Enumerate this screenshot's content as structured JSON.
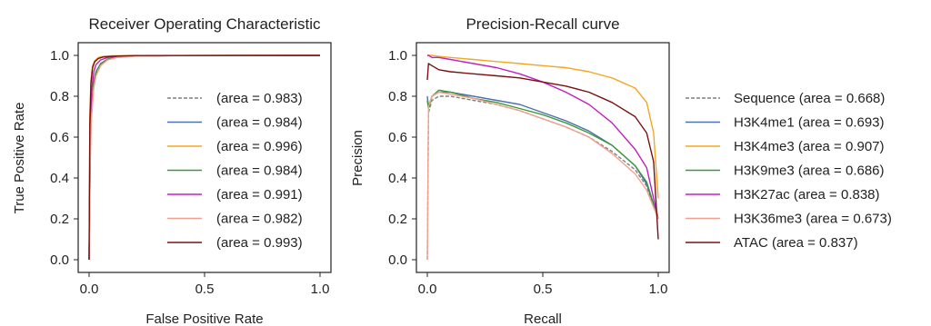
{
  "chart_data": [
    {
      "type": "line",
      "title": "Receiver Operating Characteristic",
      "xlabel": "False Positive Rate",
      "ylabel": "True Positive Rate",
      "xlim": [
        0,
        1
      ],
      "ylim": [
        0,
        1
      ],
      "xticks": [
        "0.0",
        "0.5",
        "1.0"
      ],
      "yticks": [
        "0.0",
        "0.2",
        "0.4",
        "0.6",
        "0.8",
        "1.0"
      ],
      "legend_position": "center-right",
      "series": [
        {
          "legend": "(area = 0.983)",
          "color": "#808080",
          "dashed": true,
          "x": [
            0,
            0.005,
            0.01,
            0.02,
            0.03,
            0.05,
            0.08,
            0.12,
            0.2,
            0.4,
            1.0
          ],
          "y": [
            0,
            0.5,
            0.7,
            0.85,
            0.91,
            0.955,
            0.98,
            0.99,
            0.997,
            0.999,
            1.0
          ]
        },
        {
          "legend": "(area = 0.984)",
          "color": "#4c72b0",
          "dashed": false,
          "x": [
            0,
            0.005,
            0.01,
            0.02,
            0.03,
            0.05,
            0.08,
            0.12,
            0.2,
            0.4,
            1.0
          ],
          "y": [
            0,
            0.55,
            0.75,
            0.87,
            0.92,
            0.96,
            0.982,
            0.992,
            0.997,
            0.999,
            1.0
          ]
        },
        {
          "legend": "(area = 0.996)",
          "color": "#f5a623",
          "dashed": false,
          "x": [
            0,
            0.003,
            0.008,
            0.015,
            0.025,
            0.04,
            0.06,
            0.1,
            0.2,
            1.0
          ],
          "y": [
            0,
            0.7,
            0.88,
            0.95,
            0.975,
            0.99,
            0.995,
            0.998,
            0.999,
            1.0
          ]
        },
        {
          "legend": "(area = 0.984)",
          "color": "#3a9a3a",
          "dashed": false,
          "x": [
            0,
            0.005,
            0.01,
            0.02,
            0.03,
            0.05,
            0.08,
            0.12,
            0.2,
            0.4,
            1.0
          ],
          "y": [
            0,
            0.54,
            0.74,
            0.87,
            0.92,
            0.958,
            0.981,
            0.991,
            0.997,
            0.999,
            1.0
          ]
        },
        {
          "legend": "(area = 0.991)",
          "color": "#c020c0",
          "dashed": false,
          "x": [
            0,
            0.004,
            0.01,
            0.02,
            0.03,
            0.05,
            0.08,
            0.12,
            0.2,
            1.0
          ],
          "y": [
            0,
            0.62,
            0.82,
            0.92,
            0.955,
            0.978,
            0.99,
            0.995,
            0.998,
            1.0
          ]
        },
        {
          "legend": "(area = 0.982)",
          "color": "#f4a090",
          "dashed": false,
          "x": [
            0,
            0.005,
            0.01,
            0.02,
            0.03,
            0.05,
            0.08,
            0.12,
            0.2,
            0.4,
            1.0
          ],
          "y": [
            0,
            0.5,
            0.69,
            0.84,
            0.9,
            0.95,
            0.978,
            0.99,
            0.996,
            0.999,
            1.0
          ]
        },
        {
          "legend": "(area = 0.993)",
          "color": "#7a1010",
          "dashed": false,
          "x": [
            0,
            0.003,
            0.008,
            0.015,
            0.025,
            0.04,
            0.06,
            0.1,
            0.2,
            1.0
          ],
          "y": [
            0,
            0.66,
            0.86,
            0.94,
            0.97,
            0.985,
            0.992,
            0.996,
            0.999,
            1.0
          ]
        }
      ]
    },
    {
      "type": "line",
      "title": "Precision-Recall curve",
      "xlabel": "Recall",
      "ylabel": "Precision",
      "xlim": [
        0,
        1
      ],
      "ylim": [
        0,
        1
      ],
      "xticks": [
        "0.0",
        "0.5",
        "1.0"
      ],
      "yticks": [
        "0.0",
        "0.2",
        "0.4",
        "0.6",
        "0.8",
        "1.0"
      ],
      "legend_position": "right-outside",
      "series": [
        {
          "legend": "Sequence (area = 0.668)",
          "color": "#808080",
          "dashed": true,
          "x": [
            0,
            0.005,
            0.02,
            0.05,
            0.1,
            0.2,
            0.3,
            0.4,
            0.5,
            0.6,
            0.7,
            0.8,
            0.9,
            0.95,
            1.0
          ],
          "y": [
            0,
            0.72,
            0.78,
            0.8,
            0.8,
            0.78,
            0.76,
            0.73,
            0.69,
            0.65,
            0.6,
            0.53,
            0.44,
            0.36,
            0.2
          ]
        },
        {
          "legend": "H3K4me1 (area = 0.693)",
          "color": "#4c72b0",
          "dashed": false,
          "x": [
            0,
            0.005,
            0.02,
            0.05,
            0.1,
            0.2,
            0.3,
            0.4,
            0.5,
            0.6,
            0.7,
            0.8,
            0.9,
            0.95,
            1.0
          ],
          "y": [
            0.8,
            0.75,
            0.8,
            0.82,
            0.82,
            0.8,
            0.78,
            0.76,
            0.72,
            0.68,
            0.63,
            0.56,
            0.46,
            0.37,
            0.2
          ]
        },
        {
          "legend": "H3K4me3 (area = 0.907)",
          "color": "#f5a623",
          "dashed": false,
          "x": [
            0,
            0.005,
            0.02,
            0.05,
            0.1,
            0.2,
            0.3,
            0.4,
            0.5,
            0.6,
            0.7,
            0.8,
            0.9,
            0.95,
            0.98,
            1.0
          ],
          "y": [
            1.0,
            1.0,
            1.0,
            0.995,
            0.99,
            0.98,
            0.97,
            0.96,
            0.95,
            0.94,
            0.92,
            0.89,
            0.84,
            0.77,
            0.62,
            0.3
          ]
        },
        {
          "legend": "H3K9me3 (area = 0.686)",
          "color": "#3a9a3a",
          "dashed": false,
          "x": [
            0,
            0.005,
            0.02,
            0.05,
            0.1,
            0.2,
            0.3,
            0.4,
            0.5,
            0.6,
            0.7,
            0.8,
            0.9,
            0.95,
            1.0
          ],
          "y": [
            0.78,
            0.74,
            0.8,
            0.83,
            0.82,
            0.79,
            0.77,
            0.74,
            0.71,
            0.67,
            0.62,
            0.56,
            0.46,
            0.38,
            0.2
          ]
        },
        {
          "legend": "H3K27ac (area = 0.838)",
          "color": "#c020c0",
          "dashed": false,
          "x": [
            0,
            0.005,
            0.02,
            0.05,
            0.1,
            0.2,
            0.3,
            0.4,
            0.5,
            0.6,
            0.7,
            0.8,
            0.9,
            0.95,
            1.0
          ],
          "y": [
            1.0,
            1.0,
            0.99,
            0.99,
            0.98,
            0.96,
            0.94,
            0.91,
            0.87,
            0.82,
            0.76,
            0.67,
            0.54,
            0.45,
            0.2
          ]
        },
        {
          "legend": "H3K36me3 (area = 0.673)",
          "color": "#f4a090",
          "dashed": false,
          "x": [
            0,
            0.005,
            0.02,
            0.05,
            0.1,
            0.2,
            0.3,
            0.4,
            0.5,
            0.6,
            0.7,
            0.8,
            0.9,
            0.95,
            1.0
          ],
          "y": [
            0.0,
            0.75,
            0.8,
            0.82,
            0.81,
            0.79,
            0.76,
            0.73,
            0.69,
            0.65,
            0.6,
            0.52,
            0.42,
            0.34,
            0.2
          ]
        },
        {
          "legend": "ATAC (area = 0.837)",
          "color": "#7a1010",
          "dashed": false,
          "x": [
            0,
            0.005,
            0.02,
            0.05,
            0.1,
            0.2,
            0.3,
            0.4,
            0.5,
            0.6,
            0.7,
            0.8,
            0.9,
            0.95,
            0.98,
            1.0
          ],
          "y": [
            0.88,
            0.96,
            0.95,
            0.93,
            0.92,
            0.91,
            0.9,
            0.89,
            0.87,
            0.85,
            0.82,
            0.77,
            0.7,
            0.62,
            0.48,
            0.1
          ]
        }
      ]
    }
  ]
}
